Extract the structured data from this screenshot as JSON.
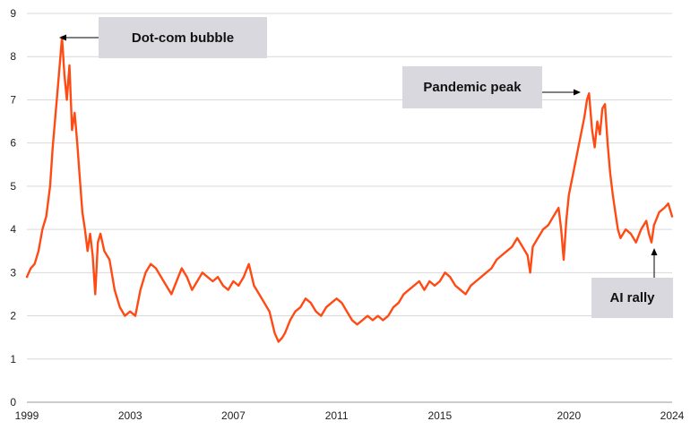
{
  "chart_data": {
    "type": "line",
    "title": "",
    "xlabel": "",
    "ylabel": "",
    "xlim": [
      1999.0,
      2024.0
    ],
    "ylim": [
      0,
      9
    ],
    "grid": "horizontal",
    "x_ticks": [
      "1999",
      "2003",
      "2007",
      "2011",
      "2015",
      "2020",
      "2024"
    ],
    "y_ticks": [
      0,
      1,
      2,
      3,
      4,
      5,
      6,
      7,
      8,
      9
    ],
    "colors": {
      "line": "#ff4a14",
      "annotation_box": "#d9d8de",
      "grid": "#d9d9d9"
    },
    "series": [
      {
        "color": "#ff4a14",
        "points": [
          [
            1999.0,
            2.9
          ],
          [
            1999.15,
            3.1
          ],
          [
            1999.3,
            3.2
          ],
          [
            1999.45,
            3.5
          ],
          [
            1999.6,
            4.0
          ],
          [
            1999.75,
            4.3
          ],
          [
            1999.9,
            5.0
          ],
          [
            2000.0,
            5.9
          ],
          [
            2000.1,
            6.6
          ],
          [
            2000.2,
            7.3
          ],
          [
            2000.3,
            8.0
          ],
          [
            2000.36,
            8.45
          ],
          [
            2000.45,
            7.6
          ],
          [
            2000.55,
            7.0
          ],
          [
            2000.65,
            7.8
          ],
          [
            2000.75,
            6.3
          ],
          [
            2000.85,
            6.7
          ],
          [
            2000.95,
            6.0
          ],
          [
            2001.05,
            5.2
          ],
          [
            2001.15,
            4.4
          ],
          [
            2001.25,
            4.0
          ],
          [
            2001.35,
            3.5
          ],
          [
            2001.45,
            3.9
          ],
          [
            2001.55,
            3.4
          ],
          [
            2001.65,
            2.5
          ],
          [
            2001.75,
            3.7
          ],
          [
            2001.85,
            3.9
          ],
          [
            2002.0,
            3.5
          ],
          [
            2002.2,
            3.3
          ],
          [
            2002.4,
            2.6
          ],
          [
            2002.6,
            2.2
          ],
          [
            2002.8,
            2.0
          ],
          [
            2003.0,
            2.1
          ],
          [
            2003.2,
            2.0
          ],
          [
            2003.4,
            2.6
          ],
          [
            2003.6,
            3.0
          ],
          [
            2003.8,
            3.2
          ],
          [
            2004.0,
            3.1
          ],
          [
            2004.2,
            2.9
          ],
          [
            2004.4,
            2.7
          ],
          [
            2004.6,
            2.5
          ],
          [
            2004.8,
            2.8
          ],
          [
            2005.0,
            3.1
          ],
          [
            2005.2,
            2.9
          ],
          [
            2005.4,
            2.6
          ],
          [
            2005.6,
            2.8
          ],
          [
            2005.8,
            3.0
          ],
          [
            2006.0,
            2.9
          ],
          [
            2006.2,
            2.8
          ],
          [
            2006.4,
            2.9
          ],
          [
            2006.6,
            2.7
          ],
          [
            2006.8,
            2.6
          ],
          [
            2007.0,
            2.8
          ],
          [
            2007.2,
            2.7
          ],
          [
            2007.4,
            2.9
          ],
          [
            2007.6,
            3.2
          ],
          [
            2007.8,
            2.7
          ],
          [
            2008.0,
            2.5
          ],
          [
            2008.2,
            2.3
          ],
          [
            2008.4,
            2.1
          ],
          [
            2008.6,
            1.6
          ],
          [
            2008.75,
            1.4
          ],
          [
            2008.9,
            1.5
          ],
          [
            2009.0,
            1.6
          ],
          [
            2009.2,
            1.9
          ],
          [
            2009.4,
            2.1
          ],
          [
            2009.6,
            2.2
          ],
          [
            2009.8,
            2.4
          ],
          [
            2010.0,
            2.3
          ],
          [
            2010.2,
            2.1
          ],
          [
            2010.4,
            2.0
          ],
          [
            2010.6,
            2.2
          ],
          [
            2010.8,
            2.3
          ],
          [
            2011.0,
            2.4
          ],
          [
            2011.2,
            2.3
          ],
          [
            2011.4,
            2.1
          ],
          [
            2011.6,
            1.9
          ],
          [
            2011.8,
            1.8
          ],
          [
            2012.0,
            1.9
          ],
          [
            2012.2,
            2.0
          ],
          [
            2012.4,
            1.9
          ],
          [
            2012.6,
            2.0
          ],
          [
            2012.8,
            1.9
          ],
          [
            2013.0,
            2.0
          ],
          [
            2013.2,
            2.2
          ],
          [
            2013.4,
            2.3
          ],
          [
            2013.6,
            2.5
          ],
          [
            2013.8,
            2.6
          ],
          [
            2014.0,
            2.7
          ],
          [
            2014.2,
            2.8
          ],
          [
            2014.4,
            2.6
          ],
          [
            2014.6,
            2.8
          ],
          [
            2014.8,
            2.7
          ],
          [
            2015.0,
            2.8
          ],
          [
            2015.2,
            3.0
          ],
          [
            2015.4,
            2.9
          ],
          [
            2015.6,
            2.7
          ],
          [
            2015.8,
            2.6
          ],
          [
            2016.0,
            2.5
          ],
          [
            2016.2,
            2.7
          ],
          [
            2016.4,
            2.8
          ],
          [
            2016.6,
            2.9
          ],
          [
            2016.8,
            3.0
          ],
          [
            2017.0,
            3.1
          ],
          [
            2017.2,
            3.3
          ],
          [
            2017.4,
            3.4
          ],
          [
            2017.6,
            3.5
          ],
          [
            2017.8,
            3.6
          ],
          [
            2018.0,
            3.8
          ],
          [
            2018.2,
            3.6
          ],
          [
            2018.4,
            3.4
          ],
          [
            2018.5,
            3.0
          ],
          [
            2018.6,
            3.6
          ],
          [
            2018.8,
            3.8
          ],
          [
            2019.0,
            4.0
          ],
          [
            2019.2,
            4.1
          ],
          [
            2019.4,
            4.3
          ],
          [
            2019.6,
            4.5
          ],
          [
            2019.7,
            4.0
          ],
          [
            2019.8,
            3.3
          ],
          [
            2019.9,
            4.2
          ],
          [
            2020.0,
            4.8
          ],
          [
            2020.2,
            5.4
          ],
          [
            2020.4,
            6.0
          ],
          [
            2020.6,
            6.6
          ],
          [
            2020.7,
            7.0
          ],
          [
            2020.78,
            7.15
          ],
          [
            2020.9,
            6.3
          ],
          [
            2021.0,
            5.9
          ],
          [
            2021.1,
            6.5
          ],
          [
            2021.2,
            6.2
          ],
          [
            2021.3,
            6.8
          ],
          [
            2021.4,
            6.9
          ],
          [
            2021.5,
            6.0
          ],
          [
            2021.6,
            5.3
          ],
          [
            2021.7,
            4.8
          ],
          [
            2021.8,
            4.4
          ],
          [
            2021.9,
            4.0
          ],
          [
            2022.0,
            3.8
          ],
          [
            2022.2,
            4.0
          ],
          [
            2022.4,
            3.9
          ],
          [
            2022.6,
            3.7
          ],
          [
            2022.8,
            4.0
          ],
          [
            2023.0,
            4.2
          ],
          [
            2023.1,
            3.9
          ],
          [
            2023.2,
            3.7
          ],
          [
            2023.3,
            4.1
          ],
          [
            2023.5,
            4.4
          ],
          [
            2023.7,
            4.5
          ],
          [
            2023.85,
            4.6
          ],
          [
            2024.0,
            4.3
          ]
        ]
      }
    ],
    "annotations": [
      {
        "text": "Dot-com bubble",
        "x": 2000.36,
        "y": 8.45
      },
      {
        "text": "Pandemic peak",
        "x": 2020.78,
        "y": 7.15
      },
      {
        "text": "AI rally",
        "x": 2023.3,
        "y": 3.7
      }
    ]
  }
}
